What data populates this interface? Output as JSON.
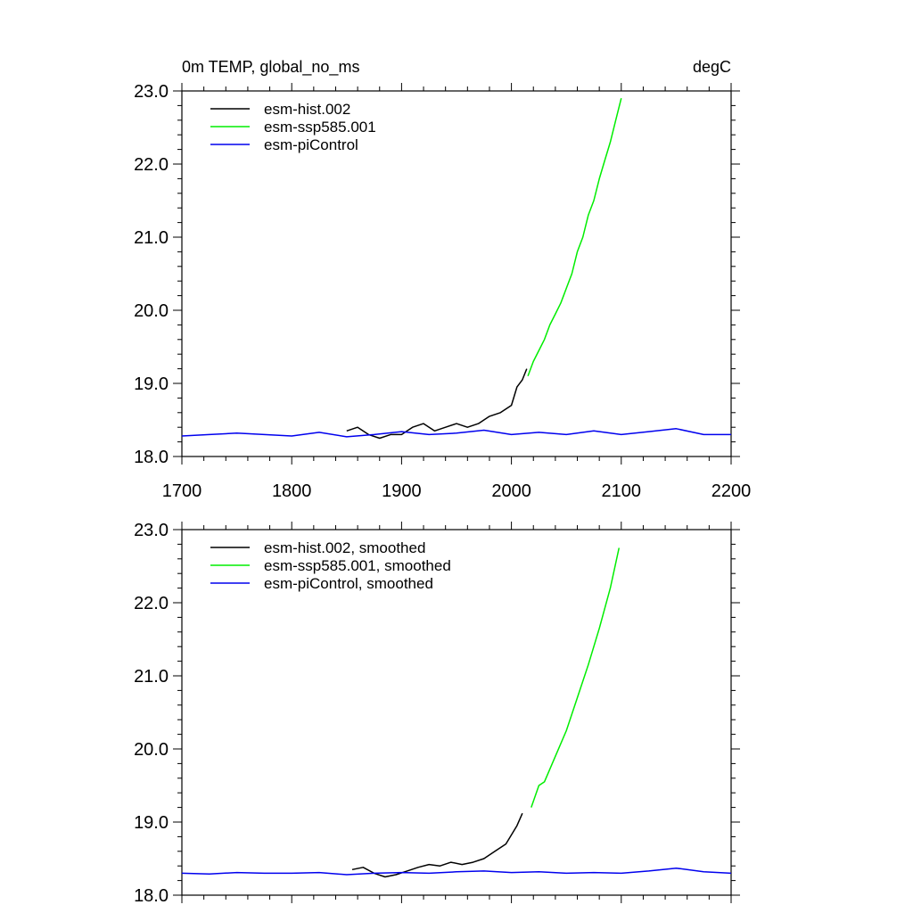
{
  "header": {
    "title": "0m TEMP, global_no_ms",
    "units": "degC"
  },
  "colors": {
    "hist": "#000000",
    "ssp": "#00ee00",
    "pic": "#0000ee"
  },
  "chart_data": [
    {
      "type": "line",
      "xlim": [
        1700,
        2200
      ],
      "ylim": [
        18.0,
        23.0
      ],
      "xticks": [
        "1700",
        "1800",
        "1900",
        "2000",
        "2100",
        "2200"
      ],
      "yticks": [
        "18.0",
        "19.0",
        "20.0",
        "21.0",
        "22.0",
        "23.0"
      ],
      "legend_position": "top-left",
      "series": [
        {
          "name": "esm-hist.002",
          "color_key": "hist",
          "x": [
            1850,
            1860,
            1870,
            1880,
            1890,
            1900,
            1910,
            1920,
            1930,
            1940,
            1950,
            1960,
            1970,
            1980,
            1990,
            2000,
            2005,
            2010,
            2014
          ],
          "y": [
            18.35,
            18.4,
            18.3,
            18.25,
            18.3,
            18.3,
            18.4,
            18.45,
            18.35,
            18.4,
            18.45,
            18.4,
            18.45,
            18.55,
            18.6,
            18.7,
            18.95,
            19.05,
            19.2
          ]
        },
        {
          "name": "esm-ssp585.001",
          "color_key": "ssp",
          "x": [
            2015,
            2020,
            2025,
            2030,
            2035,
            2040,
            2045,
            2050,
            2055,
            2060,
            2065,
            2070,
            2075,
            2080,
            2085,
            2090,
            2095,
            2100
          ],
          "y": [
            19.1,
            19.3,
            19.45,
            19.6,
            19.8,
            19.95,
            20.1,
            20.3,
            20.5,
            20.8,
            21.0,
            21.3,
            21.5,
            21.8,
            22.05,
            22.3,
            22.6,
            22.9
          ]
        },
        {
          "name": "esm-piControl",
          "color_key": "pic",
          "x": [
            1700,
            1725,
            1750,
            1775,
            1800,
            1825,
            1850,
            1875,
            1900,
            1925,
            1950,
            1975,
            2000,
            2025,
            2050,
            2075,
            2100,
            2125,
            2150,
            2175,
            2200
          ],
          "y": [
            18.28,
            18.3,
            18.32,
            18.3,
            18.28,
            18.33,
            18.27,
            18.3,
            18.34,
            18.3,
            18.32,
            18.36,
            18.3,
            18.33,
            18.3,
            18.35,
            18.3,
            18.34,
            18.38,
            18.3,
            18.3
          ]
        }
      ]
    },
    {
      "type": "line",
      "xlim": [
        1700,
        2200
      ],
      "ylim": [
        18.0,
        23.0
      ],
      "xticks": [],
      "yticks": [
        "18.0",
        "19.0",
        "20.0",
        "21.0",
        "22.0",
        "23.0"
      ],
      "legend_position": "top-left",
      "series": [
        {
          "name": "esm-hist.002, smoothed",
          "color_key": "hist",
          "x": [
            1855,
            1865,
            1875,
            1885,
            1895,
            1905,
            1915,
            1925,
            1935,
            1945,
            1955,
            1965,
            1975,
            1985,
            1995,
            2005,
            2010
          ],
          "y": [
            18.35,
            18.38,
            18.3,
            18.25,
            18.28,
            18.33,
            18.38,
            18.42,
            18.4,
            18.45,
            18.42,
            18.45,
            18.5,
            18.6,
            18.7,
            18.95,
            19.12
          ]
        },
        {
          "name": "esm-ssp585.001, smoothed",
          "color_key": "ssp",
          "x": [
            2018,
            2025,
            2030,
            2040,
            2050,
            2060,
            2070,
            2080,
            2090,
            2098
          ],
          "y": [
            19.2,
            19.5,
            19.55,
            19.9,
            20.25,
            20.7,
            21.15,
            21.65,
            22.2,
            22.75
          ]
        },
        {
          "name": "esm-piControl, smoothed",
          "color_key": "pic",
          "x": [
            1700,
            1725,
            1750,
            1775,
            1800,
            1825,
            1850,
            1875,
            1900,
            1925,
            1950,
            1975,
            2000,
            2025,
            2050,
            2075,
            2100,
            2125,
            2150,
            2175,
            2200
          ],
          "y": [
            18.3,
            18.29,
            18.31,
            18.3,
            18.3,
            18.31,
            18.28,
            18.3,
            18.31,
            18.3,
            18.32,
            18.33,
            18.31,
            18.32,
            18.3,
            18.31,
            18.3,
            18.33,
            18.37,
            18.32,
            18.3
          ]
        }
      ]
    }
  ]
}
